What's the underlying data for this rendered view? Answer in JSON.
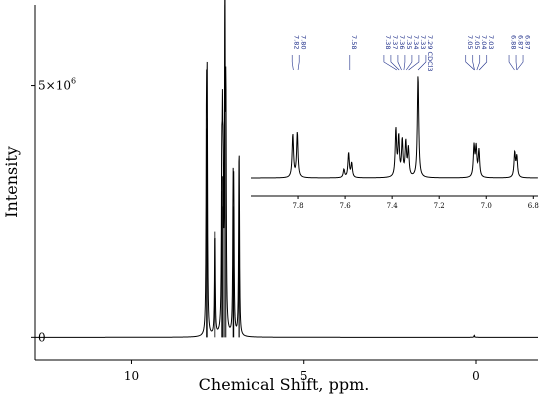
{
  "chart_data": {
    "type": "line",
    "main": {
      "xlabel": "Chemical Shift, ppm.",
      "ylabel": "Intensity",
      "xlim": [
        12.8,
        -1.8
      ],
      "ylim": [
        -0.45,
        6.6
      ],
      "x_ticks": [
        10,
        5,
        0
      ],
      "x_tick_labels": [
        "10",
        "5",
        "0"
      ],
      "y_ticks": [
        0,
        5
      ],
      "y_tick_labels": [
        "0",
        "5×10"
      ],
      "y_tick_exponent": "6",
      "baseline": 0,
      "peaks": [
        {
          "ppm": 7.82,
          "height": 4.15
        },
        {
          "ppm": 7.8,
          "height": 4.35
        },
        {
          "ppm": 7.58,
          "height": 2.1
        },
        {
          "ppm": 7.38,
          "height": 2.9
        },
        {
          "ppm": 7.36,
          "height": 3.2
        },
        {
          "ppm": 7.34,
          "height": 2.6
        },
        {
          "ppm": 7.29,
          "height": 6.6
        },
        {
          "ppm": 7.26,
          "height": 4.5
        },
        {
          "ppm": 7.05,
          "height": 2.6
        },
        {
          "ppm": 7.03,
          "height": 2.5
        },
        {
          "ppm": 6.88,
          "height": 2.2
        },
        {
          "ppm": 6.87,
          "height": 2.1
        },
        {
          "ppm": 0.05,
          "height": 0.04
        }
      ]
    },
    "inset": {
      "xlim": [
        8.0,
        6.78
      ],
      "x_ticks": [
        7.8,
        7.6,
        7.4,
        7.2,
        7.0,
        6.8
      ],
      "x_tick_labels": [
        "7.8",
        "7.6",
        "7.4",
        "7.2",
        "7.0",
        "6.8"
      ],
      "peak_labels": [
        {
          "ppm": 7.82,
          "text": "7.82"
        },
        {
          "ppm": 7.8,
          "text": "7.80"
        },
        {
          "ppm": 7.58,
          "text": "7.58"
        },
        {
          "ppm": 7.38,
          "text": "7.38"
        },
        {
          "ppm": 7.37,
          "text": "7.37"
        },
        {
          "ppm": 7.36,
          "text": "7.36"
        },
        {
          "ppm": 7.35,
          "text": "7.35"
        },
        {
          "ppm": 7.34,
          "text": "7.34"
        },
        {
          "ppm": 7.33,
          "text": "7.33"
        },
        {
          "ppm": 7.29,
          "text": "7.29 CDCl3"
        },
        {
          "ppm": 7.05,
          "text": "7.05"
        },
        {
          "ppm": 7.05,
          "text": "7.05"
        },
        {
          "ppm": 7.04,
          "text": "7.04"
        },
        {
          "ppm": 7.03,
          "text": "7.03"
        },
        {
          "ppm": 6.88,
          "text": "6.88"
        },
        {
          "ppm": 6.87,
          "text": "6.87"
        },
        {
          "ppm": 6.87,
          "text": "6.87"
        }
      ],
      "peaks": [
        {
          "ppm": 7.822,
          "height": 0.42
        },
        {
          "ppm": 7.803,
          "height": 0.44
        },
        {
          "ppm": 7.605,
          "height": 0.08
        },
        {
          "ppm": 7.585,
          "height": 0.24
        },
        {
          "ppm": 7.572,
          "height": 0.14
        },
        {
          "ppm": 7.384,
          "height": 0.46
        },
        {
          "ppm": 7.372,
          "height": 0.38
        },
        {
          "ppm": 7.357,
          "height": 0.35
        },
        {
          "ppm": 7.342,
          "height": 0.33
        },
        {
          "ppm": 7.331,
          "height": 0.27
        },
        {
          "ppm": 7.29,
          "height": 1.0
        },
        {
          "ppm": 7.052,
          "height": 0.3
        },
        {
          "ppm": 7.043,
          "height": 0.28
        },
        {
          "ppm": 7.031,
          "height": 0.26
        },
        {
          "ppm": 6.879,
          "height": 0.24
        },
        {
          "ppm": 6.87,
          "height": 0.2
        }
      ]
    }
  }
}
